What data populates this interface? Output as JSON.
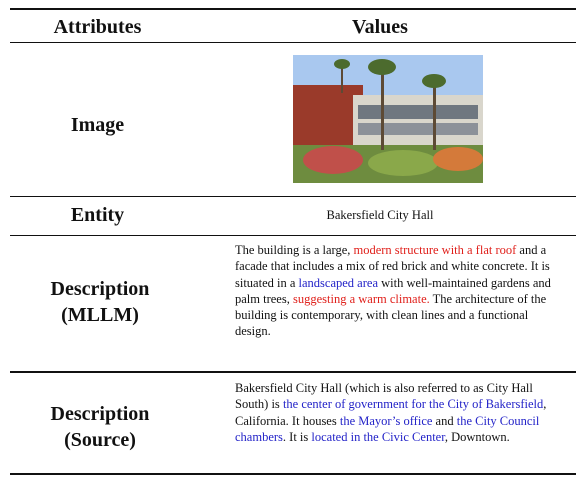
{
  "table": {
    "header": [
      "Attributes",
      "Values"
    ],
    "rows": [
      {
        "attribute": "Image"
      },
      {
        "attribute": "Entity",
        "value": "Bakersfield City Hall"
      },
      {
        "attribute": "Description (MLLM)",
        "segments": [
          {
            "text": "The building is a large, "
          },
          {
            "text": "modern structure with a flat roof",
            "color": "#e0201b"
          },
          {
            "text": " and a facade that includes a mix of red brick and white concrete. It is situated in a "
          },
          {
            "text": "landscaped area",
            "color": "#2323c8"
          },
          {
            "text": " with well-maintained gardens and palm trees, "
          },
          {
            "text": "suggesting a warm climate.",
            "color": "#e0201b"
          },
          {
            "text": " The architecture of the building is contemporary, with clean lines and a functional design."
          }
        ]
      },
      {
        "attribute": "Description (Source)",
        "segments": [
          {
            "text": "Bakersfield City Hall (which is also referred to as City Hall South) is "
          },
          {
            "text": "the center of government for the City of Bakersfield",
            "color": "#2323c8"
          },
          {
            "text": ", California. It houses "
          },
          {
            "text": "the Mayor’s office",
            "color": "#2323c8"
          },
          {
            "text": " and "
          },
          {
            "text": "the City Council chambers",
            "color": "#2323c8"
          },
          {
            "text": ". It is "
          },
          {
            "text": "located in the Civic Center",
            "color": "#2323c8"
          },
          {
            "text": ", Downtown."
          }
        ]
      }
    ]
  }
}
